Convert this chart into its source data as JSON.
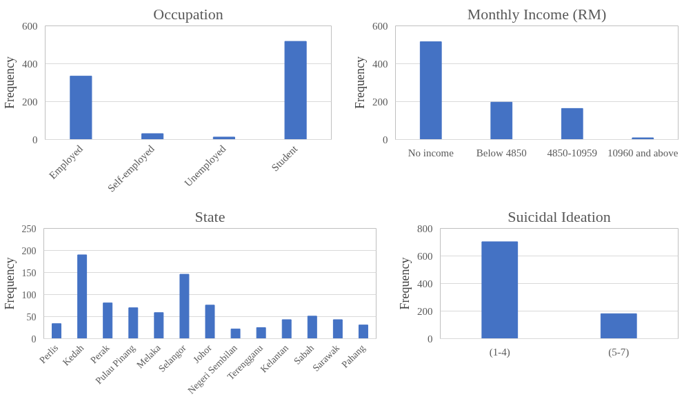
{
  "chart_data": [
    {
      "type": "bar",
      "title": "Occupation",
      "ylabel": "Frequency",
      "categories": [
        "Employed",
        "Self-employed",
        "Unemployed",
        "Student"
      ],
      "values": [
        335,
        31,
        13,
        518
      ],
      "color": "#4472c4",
      "ylim": [
        0,
        600
      ],
      "yticks": [
        0,
        200,
        400,
        600
      ],
      "grid": "y"
    },
    {
      "type": "bar",
      "title": "Monthly Income (RM)",
      "ylabel": "Frequency",
      "categories": [
        "No income",
        "Below 4850",
        "4850-10959",
        "10960 and above"
      ],
      "values": [
        516,
        197,
        164,
        9
      ],
      "color": "#4472c4",
      "ylim": [
        0,
        600
      ],
      "yticks": [
        0,
        200,
        400,
        600
      ],
      "grid": "y"
    },
    {
      "type": "bar",
      "title": "State",
      "ylabel": "Frequency",
      "categories": [
        "Perlis",
        "Kedah",
        "Perak",
        "Pulau Pinang",
        "Melaka",
        "Selangor",
        "Johor",
        "Negeri Sembilan",
        "Terengganu",
        "Kelantan",
        "Sabah",
        "Sarawak",
        "Pahang"
      ],
      "values": [
        34,
        190,
        81,
        70,
        59,
        146,
        76,
        22,
        25,
        43,
        51,
        43,
        31
      ],
      "color": "#4472c4",
      "ylim": [
        0,
        250
      ],
      "yticks": [
        0,
        50,
        100,
        150,
        200,
        250
      ],
      "grid": "y"
    },
    {
      "type": "bar",
      "title": "Suicidal Ideation",
      "ylabel": "Frequency",
      "categories": [
        "(1-4)",
        "(5-7)"
      ],
      "values": [
        703,
        181
      ],
      "color": "#4472c4",
      "ylim": [
        0,
        800
      ],
      "yticks": [
        0,
        200,
        400,
        600,
        800
      ],
      "grid": "y"
    }
  ]
}
